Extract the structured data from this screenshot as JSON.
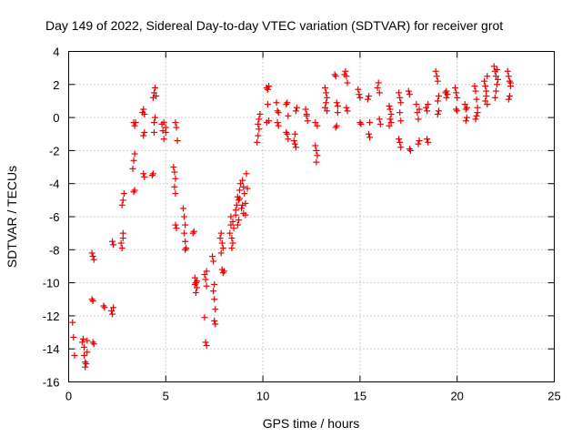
{
  "chart_data": {
    "type": "scatter",
    "title": "Day 149 of 2022, Sidereal Day-to-day VTEC variation (SDTVAR) for receiver grot",
    "xlabel": "GPS time / hours",
    "ylabel": "SDTVAR / TECUs",
    "xlim": [
      0,
      25
    ],
    "ylim": [
      -16,
      4
    ],
    "xticks": [
      0,
      5,
      10,
      15,
      20,
      25
    ],
    "yticks": [
      -16,
      -14,
      -12,
      -10,
      -8,
      -6,
      -4,
      -2,
      0,
      2,
      4
    ],
    "xtick_labels": [
      "0",
      "5",
      "10",
      "15",
      "20",
      "25"
    ],
    "ytick_labels": [
      "-16",
      "-14",
      "-12",
      "-10",
      "-8",
      "-6",
      "-4",
      "-2",
      "0",
      "2",
      "4"
    ],
    "grid": true,
    "marker": "+",
    "color": "#ee0000",
    "series": [
      {
        "name": "SDTVAR",
        "points": [
          [
            0.2,
            -12.4
          ],
          [
            0.25,
            -13.3
          ],
          [
            0.3,
            -14.4
          ],
          [
            0.7,
            -13.6
          ],
          [
            0.75,
            -13.4
          ],
          [
            0.8,
            -13.9
          ],
          [
            0.8,
            -14.4
          ],
          [
            0.85,
            -14.8
          ],
          [
            0.85,
            -15.1
          ],
          [
            0.9,
            -14.9
          ],
          [
            0.95,
            -13.5
          ],
          [
            0.95,
            -14.2
          ],
          [
            1.2,
            -11.0
          ],
          [
            1.25,
            -11.1
          ],
          [
            1.25,
            -13.6
          ],
          [
            1.3,
            -13.7
          ],
          [
            1.2,
            -8.2
          ],
          [
            1.25,
            -8.4
          ],
          [
            1.3,
            -8.6
          ],
          [
            1.8,
            -11.4
          ],
          [
            1.85,
            -11.5
          ],
          [
            2.2,
            -11.7
          ],
          [
            2.25,
            -11.9
          ],
          [
            2.3,
            -11.5
          ],
          [
            2.25,
            -7.5
          ],
          [
            2.3,
            -7.7
          ],
          [
            2.7,
            -7.6
          ],
          [
            2.75,
            -7.9
          ],
          [
            2.8,
            -7.3
          ],
          [
            2.75,
            -5.3
          ],
          [
            2.8,
            -5.0
          ],
          [
            2.85,
            -4.6
          ],
          [
            2.8,
            -7.0
          ],
          [
            3.3,
            -3.1
          ],
          [
            3.35,
            -2.6
          ],
          [
            3.4,
            -2.2
          ],
          [
            3.35,
            -4.5
          ],
          [
            3.4,
            -4.4
          ],
          [
            3.35,
            -0.3
          ],
          [
            3.4,
            -0.5
          ],
          [
            3.45,
            -0.3
          ],
          [
            3.8,
            0.3
          ],
          [
            3.85,
            0.5
          ],
          [
            3.9,
            0.2
          ],
          [
            3.85,
            -1.1
          ],
          [
            3.9,
            -0.9
          ],
          [
            3.85,
            -3.4
          ],
          [
            3.9,
            -3.6
          ],
          [
            4.3,
            -3.5
          ],
          [
            4.35,
            -3.4
          ],
          [
            4.4,
            -0.9
          ],
          [
            4.4,
            -0.3
          ],
          [
            4.45,
            0.0
          ],
          [
            4.35,
            1.2
          ],
          [
            4.4,
            1.5
          ],
          [
            4.45,
            1.8
          ],
          [
            4.5,
            1.3
          ],
          [
            4.8,
            -0.4
          ],
          [
            4.85,
            -0.8
          ],
          [
            4.9,
            -1.3
          ],
          [
            4.9,
            -0.3
          ],
          [
            5.0,
            -0.9
          ],
          [
            5.0,
            -0.6
          ],
          [
            5.4,
            -3.0
          ],
          [
            5.45,
            -3.3
          ],
          [
            5.5,
            -3.7
          ],
          [
            5.45,
            -4.2
          ],
          [
            5.5,
            -4.6
          ],
          [
            5.5,
            -0.3
          ],
          [
            5.55,
            -0.6
          ],
          [
            5.6,
            -1.4
          ],
          [
            5.5,
            -6.5
          ],
          [
            5.55,
            -6.7
          ],
          [
            5.9,
            -5.5
          ],
          [
            5.95,
            -6.0
          ],
          [
            6.0,
            -6.5
          ],
          [
            5.95,
            -7.0
          ],
          [
            6.0,
            -7.5
          ],
          [
            6.05,
            -7.9
          ],
          [
            6.0,
            -8.0
          ],
          [
            6.4,
            -7.0
          ],
          [
            6.45,
            -6.9
          ],
          [
            6.5,
            -9.7
          ],
          [
            6.55,
            -10.0
          ],
          [
            6.6,
            -10.3
          ],
          [
            6.55,
            -10.6
          ],
          [
            6.6,
            -9.9
          ],
          [
            6.5,
            -10.1
          ],
          [
            7.0,
            -9.5
          ],
          [
            7.05,
            -9.8
          ],
          [
            7.1,
            -10.2
          ],
          [
            7.05,
            -13.6
          ],
          [
            7.1,
            -13.8
          ],
          [
            7.0,
            -12.1
          ],
          [
            7.1,
            -9.3
          ],
          [
            7.4,
            -8.4
          ],
          [
            7.45,
            -10.5
          ],
          [
            7.5,
            -11.0
          ],
          [
            7.55,
            -11.6
          ],
          [
            7.5,
            -12.3
          ],
          [
            7.55,
            -12.5
          ],
          [
            7.5,
            -10.1
          ],
          [
            7.45,
            -8.7
          ],
          [
            7.8,
            -7.3
          ],
          [
            7.85,
            -7.0
          ],
          [
            7.9,
            -7.6
          ],
          [
            7.95,
            -7.9
          ],
          [
            7.9,
            -9.2
          ],
          [
            7.95,
            -9.4
          ],
          [
            8.0,
            -9.3
          ],
          [
            7.85,
            -8.2
          ],
          [
            8.3,
            -7.0
          ],
          [
            8.35,
            -6.5
          ],
          [
            8.4,
            -7.3
          ],
          [
            8.45,
            -6.3
          ],
          [
            8.4,
            -7.9
          ],
          [
            8.35,
            -6.0
          ],
          [
            8.5,
            -6.7
          ],
          [
            8.45,
            -7.6
          ],
          [
            8.6,
            -5.9
          ],
          [
            8.65,
            -5.3
          ],
          [
            8.7,
            -4.8
          ],
          [
            8.75,
            -6.2
          ],
          [
            8.8,
            -4.4
          ],
          [
            8.7,
            -6.5
          ],
          [
            8.6,
            -5.6
          ],
          [
            8.75,
            -5.0
          ],
          [
            8.8,
            -4.9
          ],
          [
            8.85,
            -4.0
          ],
          [
            8.9,
            -5.5
          ],
          [
            8.95,
            -3.8
          ],
          [
            9.0,
            -5.8
          ],
          [
            9.05,
            -4.6
          ],
          [
            9.1,
            -5.2
          ],
          [
            9.15,
            -3.4
          ],
          [
            9.2,
            -4.3
          ],
          [
            9.1,
            -5.9
          ],
          [
            9.0,
            -4.2
          ],
          [
            8.95,
            -5.3
          ],
          [
            9.7,
            -1.5
          ],
          [
            9.75,
            -1.1
          ],
          [
            9.8,
            -0.7
          ],
          [
            9.75,
            -0.4
          ],
          [
            9.8,
            -0.1
          ],
          [
            9.85,
            0.2
          ],
          [
            10.2,
            1.8
          ],
          [
            10.25,
            1.7
          ],
          [
            10.3,
            1.9
          ],
          [
            10.2,
            -0.3
          ],
          [
            10.3,
            -0.2
          ],
          [
            10.25,
            0.8
          ],
          [
            10.7,
            0.9
          ],
          [
            10.75,
            0.4
          ],
          [
            10.8,
            -0.5
          ],
          [
            10.75,
            -0.3
          ],
          [
            10.8,
            0.3
          ],
          [
            11.2,
            0.8
          ],
          [
            11.25,
            0.9
          ],
          [
            11.3,
            0.1
          ],
          [
            11.25,
            -1.0
          ],
          [
            11.3,
            -1.3
          ],
          [
            11.2,
            -0.9
          ],
          [
            11.6,
            -1.4
          ],
          [
            11.65,
            -1.6
          ],
          [
            11.7,
            -1.8
          ],
          [
            11.65,
            -1.0
          ],
          [
            11.7,
            0.4
          ],
          [
            11.75,
            0.6
          ],
          [
            12.2,
            0.5
          ],
          [
            12.25,
            0.2
          ],
          [
            12.3,
            -0.2
          ],
          [
            12.25,
            0.1
          ],
          [
            12.7,
            -1.7
          ],
          [
            12.75,
            -2.0
          ],
          [
            12.8,
            -2.3
          ],
          [
            12.75,
            -2.7
          ],
          [
            12.7,
            -0.3
          ],
          [
            12.8,
            -0.5
          ],
          [
            13.2,
            1.8
          ],
          [
            13.25,
            1.5
          ],
          [
            13.3,
            1.2
          ],
          [
            13.25,
            0.9
          ],
          [
            13.2,
            0.6
          ],
          [
            13.3,
            0.4
          ],
          [
            13.7,
            2.6
          ],
          [
            13.75,
            2.5
          ],
          [
            13.8,
            0.9
          ],
          [
            13.85,
            0.7
          ],
          [
            13.8,
            -0.5
          ],
          [
            13.75,
            -0.6
          ],
          [
            13.85,
            0.3
          ],
          [
            14.2,
            2.6
          ],
          [
            14.25,
            2.8
          ],
          [
            14.3,
            2.5
          ],
          [
            14.35,
            2.1
          ],
          [
            14.3,
            0.6
          ],
          [
            14.35,
            0.4
          ],
          [
            14.9,
            1.7
          ],
          [
            14.95,
            1.4
          ],
          [
            15.0,
            1.2
          ],
          [
            15.0,
            -0.3
          ],
          [
            15.05,
            -0.4
          ],
          [
            15.4,
            1.1
          ],
          [
            15.45,
            1.3
          ],
          [
            15.5,
            -0.3
          ],
          [
            15.45,
            -1.0
          ],
          [
            15.5,
            -1.2
          ],
          [
            15.9,
            1.8
          ],
          [
            15.95,
            2.1
          ],
          [
            16.0,
            1.5
          ],
          [
            16.0,
            -0.1
          ],
          [
            16.05,
            -0.4
          ],
          [
            16.5,
            0.7
          ],
          [
            16.55,
            0.5
          ],
          [
            16.6,
            0.2
          ],
          [
            16.55,
            -0.1
          ],
          [
            16.6,
            -0.3
          ],
          [
            16.5,
            -0.5
          ],
          [
            17.0,
            1.5
          ],
          [
            17.05,
            1.2
          ],
          [
            17.1,
            0.9
          ],
          [
            17.05,
            -1.5
          ],
          [
            17.1,
            -1.8
          ],
          [
            17.0,
            -1.3
          ],
          [
            17.05,
            0.3
          ],
          [
            17.1,
            -0.2
          ],
          [
            17.5,
            1.6
          ],
          [
            17.55,
            1.4
          ],
          [
            17.6,
            -2.0
          ],
          [
            17.55,
            -1.9
          ],
          [
            17.9,
            0.8
          ],
          [
            17.95,
            0.3
          ],
          [
            18.0,
            -0.1
          ],
          [
            18.05,
            -1.4
          ],
          [
            18.0,
            -1.6
          ],
          [
            18.05,
            0.5
          ],
          [
            18.4,
            0.6
          ],
          [
            18.45,
            0.4
          ],
          [
            18.5,
            -1.5
          ],
          [
            18.45,
            -1.3
          ],
          [
            18.5,
            0.8
          ],
          [
            18.9,
            2.8
          ],
          [
            18.95,
            2.5
          ],
          [
            19.0,
            2.2
          ],
          [
            19.05,
            1.3
          ],
          [
            19.0,
            1.0
          ],
          [
            19.05,
            0.4
          ],
          [
            19.0,
            0.2
          ],
          [
            19.4,
            1.5
          ],
          [
            19.45,
            1.2
          ],
          [
            19.5,
            1.4
          ],
          [
            19.45,
            1.6
          ],
          [
            19.9,
            1.8
          ],
          [
            19.95,
            1.5
          ],
          [
            20.0,
            1.2
          ],
          [
            19.95,
            0.5
          ],
          [
            20.0,
            0.4
          ],
          [
            20.4,
            0.8
          ],
          [
            20.45,
            0.5
          ],
          [
            20.5,
            0.0
          ],
          [
            20.45,
            -0.2
          ],
          [
            20.5,
            0.6
          ],
          [
            20.9,
            1.9
          ],
          [
            20.95,
            1.6
          ],
          [
            21.0,
            1.1
          ],
          [
            21.05,
            0.6
          ],
          [
            21.0,
            0.1
          ],
          [
            20.95,
            -0.1
          ],
          [
            21.05,
            0.3
          ],
          [
            21.4,
            2.2
          ],
          [
            21.45,
            1.9
          ],
          [
            21.5,
            1.6
          ],
          [
            21.55,
            2.5
          ],
          [
            21.5,
            1.3
          ],
          [
            21.45,
            1.0
          ],
          [
            21.55,
            0.8
          ],
          [
            21.9,
            3.1
          ],
          [
            21.95,
            2.8
          ],
          [
            22.0,
            2.5
          ],
          [
            22.05,
            2.0
          ],
          [
            22.0,
            1.6
          ],
          [
            21.95,
            1.2
          ],
          [
            22.05,
            2.9
          ],
          [
            22.1,
            2.3
          ],
          [
            22.6,
            2.8
          ],
          [
            22.65,
            2.5
          ],
          [
            22.7,
            2.2
          ],
          [
            22.75,
            1.9
          ],
          [
            22.7,
            1.3
          ],
          [
            22.65,
            1.1
          ],
          [
            22.75,
            2.1
          ]
        ]
      }
    ]
  }
}
